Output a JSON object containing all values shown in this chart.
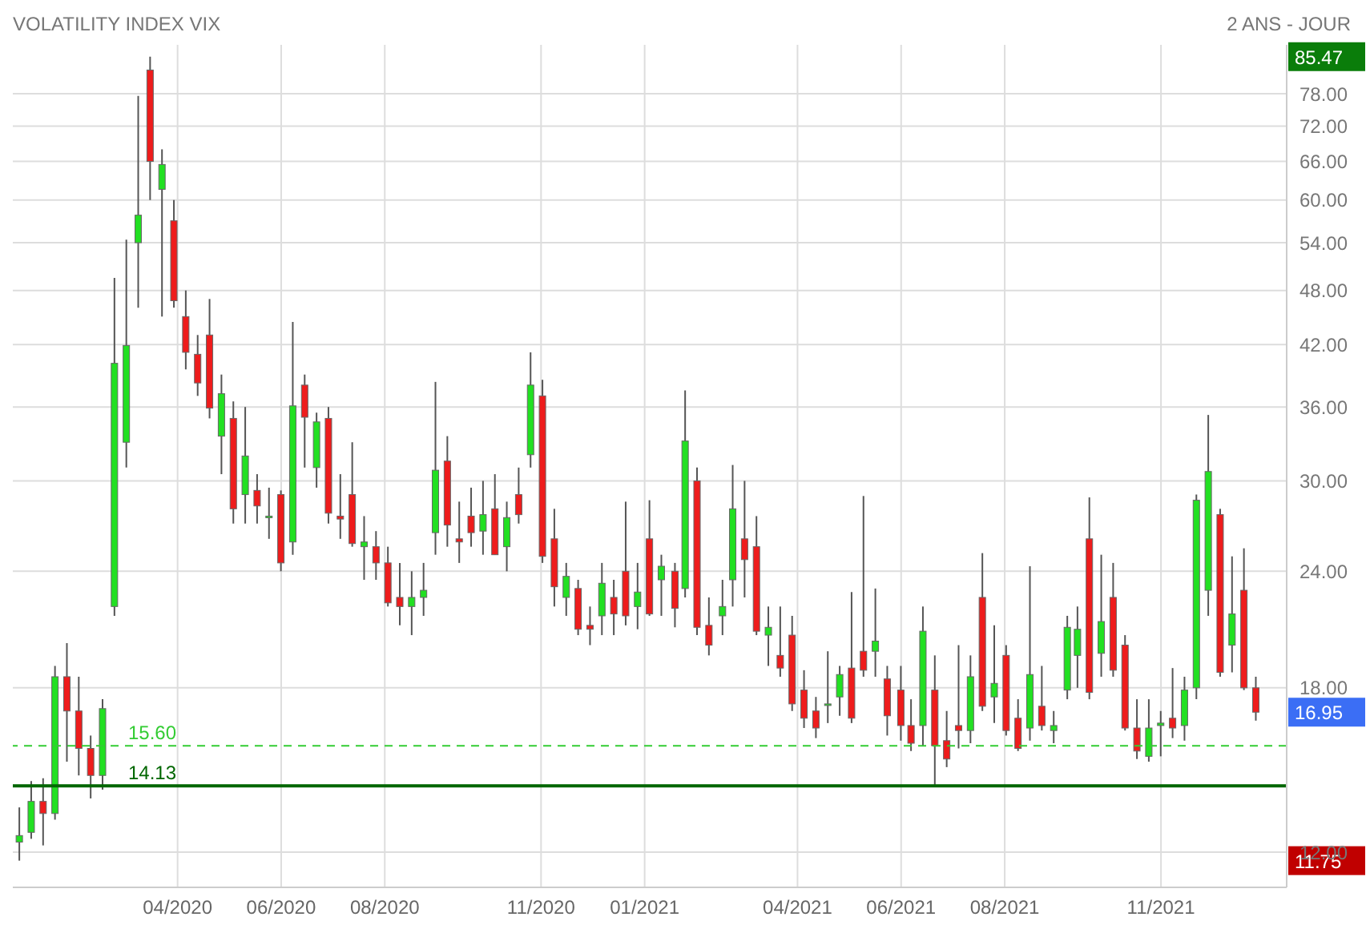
{
  "chart_data": {
    "type": "candlestick",
    "title": "VOLATILITY INDEX VIX",
    "subtitle": "2 ANS - JOUR",
    "x": [
      "2019-12-30",
      "2020-01-06",
      "2020-01-13",
      "2020-01-20",
      "2020-01-27",
      "2020-02-03",
      "2020-02-10",
      "2020-02-17",
      "2020-02-24",
      "2020-03-02",
      "2020-03-09",
      "2020-03-16",
      "2020-03-23",
      "2020-03-30",
      "2020-04-06",
      "2020-04-13",
      "2020-04-20",
      "2020-04-27",
      "2020-05-04",
      "2020-05-11",
      "2020-05-18",
      "2020-05-25",
      "2020-06-01",
      "2020-06-08",
      "2020-06-15",
      "2020-06-22",
      "2020-06-29",
      "2020-07-06",
      "2020-07-13",
      "2020-07-20",
      "2020-07-27",
      "2020-08-03",
      "2020-08-10",
      "2020-08-17",
      "2020-08-24",
      "2020-08-31",
      "2020-09-07",
      "2020-09-14",
      "2020-09-21",
      "2020-09-28",
      "2020-10-05",
      "2020-10-12",
      "2020-10-19",
      "2020-10-26",
      "2020-11-02",
      "2020-11-09",
      "2020-11-16",
      "2020-11-23",
      "2020-11-30",
      "2020-12-07",
      "2020-12-14",
      "2020-12-21",
      "2020-12-28",
      "2021-01-04",
      "2021-01-11",
      "2021-01-19",
      "2021-01-25",
      "2021-02-01",
      "2021-02-08",
      "2021-02-16",
      "2021-02-22",
      "2021-03-01",
      "2021-03-08",
      "2021-03-15",
      "2021-03-22",
      "2021-03-29",
      "2021-04-05",
      "2021-04-12",
      "2021-04-19",
      "2021-04-26",
      "2021-05-03",
      "2021-05-10",
      "2021-05-17",
      "2021-05-24",
      "2021-06-01",
      "2021-06-07",
      "2021-06-14",
      "2021-06-21",
      "2021-06-28",
      "2021-07-05",
      "2021-07-12",
      "2021-07-19",
      "2021-07-26",
      "2021-08-02",
      "2021-08-09",
      "2021-08-16",
      "2021-08-23",
      "2021-08-30",
      "2021-09-07",
      "2021-09-13",
      "2021-09-20",
      "2021-09-27",
      "2021-10-04",
      "2021-10-11",
      "2021-10-18",
      "2021-10-25",
      "2021-11-01",
      "2021-11-08",
      "2021-11-15",
      "2021-11-22",
      "2021-11-29",
      "2021-12-06",
      "2021-12-13",
      "2021-12-20",
      "2021-12-27"
    ],
    "ohlc": [
      [
        12.3,
        13.4,
        11.75,
        12.5
      ],
      [
        12.6,
        14.3,
        12.4,
        13.6
      ],
      [
        13.6,
        14.4,
        12.2,
        13.2
      ],
      [
        13.2,
        19.0,
        13.0,
        18.5
      ],
      [
        18.5,
        20.1,
        15.0,
        17.0
      ],
      [
        17.0,
        18.5,
        14.5,
        15.5
      ],
      [
        15.5,
        16.0,
        13.7,
        14.5
      ],
      [
        14.5,
        17.5,
        14.0,
        17.1
      ],
      [
        22.0,
        49.5,
        21.5,
        40.1
      ],
      [
        33.0,
        54.4,
        31.0,
        41.9
      ],
      [
        54.0,
        77.6,
        46.0,
        57.8
      ],
      [
        82.7,
        85.47,
        60.0,
        66.0
      ],
      [
        61.6,
        68.0,
        45.0,
        65.5
      ],
      [
        57.0,
        60.0,
        46.0,
        46.8
      ],
      [
        45.0,
        48.0,
        39.5,
        41.2
      ],
      [
        41.0,
        43.0,
        37.0,
        38.2
      ],
      [
        43.0,
        47.0,
        35.0,
        35.9
      ],
      [
        33.5,
        39.0,
        30.5,
        37.2
      ],
      [
        35.0,
        36.5,
        27.0,
        28.0
      ],
      [
        29.0,
        36.0,
        27.0,
        31.9
      ],
      [
        29.3,
        30.5,
        27.0,
        28.2
      ],
      [
        27.5,
        29.5,
        26.0,
        27.5
      ],
      [
        29.0,
        29.3,
        24.0,
        24.5
      ],
      [
        25.8,
        44.4,
        25.0,
        36.1
      ],
      [
        38.0,
        39.0,
        31.0,
        35.1
      ],
      [
        31.0,
        35.5,
        29.5,
        34.7
      ],
      [
        35.0,
        36.0,
        27.0,
        27.7
      ],
      [
        27.5,
        30.5,
        26.0,
        27.3
      ],
      [
        29.0,
        33.0,
        25.5,
        25.7
      ],
      [
        25.5,
        27.5,
        23.5,
        25.8
      ],
      [
        25.5,
        26.5,
        23.5,
        24.5
      ],
      [
        24.5,
        25.5,
        22.0,
        22.2
      ],
      [
        22.5,
        24.5,
        21.0,
        22.0
      ],
      [
        22.0,
        24.0,
        20.5,
        22.5
      ],
      [
        22.5,
        24.5,
        21.5,
        22.9
      ],
      [
        26.4,
        38.3,
        25.0,
        30.8
      ],
      [
        31.5,
        33.5,
        25.5,
        26.9
      ],
      [
        26.0,
        28.5,
        24.5,
        25.8
      ],
      [
        27.5,
        29.5,
        25.5,
        26.4
      ],
      [
        26.5,
        30.0,
        25.0,
        27.6
      ],
      [
        28.0,
        30.5,
        25.0,
        25.0
      ],
      [
        25.5,
        28.5,
        24.0,
        27.4
      ],
      [
        29.0,
        31.0,
        27.0,
        27.6
      ],
      [
        32.0,
        41.2,
        31.0,
        38.0
      ],
      [
        37.0,
        38.5,
        24.5,
        24.9
      ],
      [
        26.0,
        28.0,
        22.0,
        23.1
      ],
      [
        22.5,
        24.5,
        21.5,
        23.7
      ],
      [
        23.0,
        23.5,
        20.5,
        20.8
      ],
      [
        21.0,
        22.0,
        20.0,
        20.8
      ],
      [
        21.5,
        24.5,
        20.5,
        23.3
      ],
      [
        22.5,
        23.5,
        20.5,
        21.6
      ],
      [
        24.0,
        28.5,
        21.0,
        21.5
      ],
      [
        22.0,
        24.5,
        20.8,
        22.8
      ],
      [
        26.0,
        28.6,
        21.5,
        21.6
      ],
      [
        23.5,
        25.0,
        21.5,
        24.3
      ],
      [
        24.0,
        24.5,
        20.9,
        21.9
      ],
      [
        23.0,
        37.5,
        22.5,
        33.1
      ],
      [
        30.0,
        31.0,
        20.5,
        20.9
      ],
      [
        21.0,
        22.5,
        19.5,
        20.0
      ],
      [
        21.5,
        23.5,
        20.5,
        22.0
      ],
      [
        23.5,
        31.2,
        22.0,
        28.0
      ],
      [
        26.0,
        30.0,
        22.5,
        24.7
      ],
      [
        25.5,
        27.5,
        20.5,
        20.7
      ],
      [
        20.5,
        22.0,
        19.0,
        20.9
      ],
      [
        19.5,
        22.0,
        18.5,
        18.9
      ],
      [
        20.5,
        21.5,
        17.0,
        17.3
      ],
      [
        17.9,
        18.8,
        16.3,
        16.7
      ],
      [
        17.0,
        17.6,
        15.9,
        16.3
      ],
      [
        17.3,
        19.7,
        16.5,
        17.3
      ],
      [
        17.6,
        19.0,
        16.8,
        18.6
      ],
      [
        18.9,
        22.8,
        16.5,
        16.7
      ],
      [
        19.7,
        28.9,
        18.5,
        18.8
      ],
      [
        19.7,
        23.0,
        18.5,
        20.2
      ],
      [
        18.4,
        19.0,
        16.0,
        16.8
      ],
      [
        17.9,
        19.0,
        15.8,
        16.4
      ],
      [
        16.4,
        17.5,
        15.4,
        15.7
      ],
      [
        16.4,
        22.0,
        15.6,
        20.7
      ],
      [
        17.9,
        19.5,
        14.1,
        15.6
      ],
      [
        15.8,
        17.0,
        14.8,
        15.1
      ],
      [
        16.4,
        20.0,
        15.5,
        16.2
      ],
      [
        16.2,
        19.5,
        15.7,
        18.5
      ],
      [
        22.5,
        25.1,
        17.0,
        17.2
      ],
      [
        17.6,
        21.0,
        16.5,
        18.2
      ],
      [
        19.5,
        20.0,
        16.0,
        16.2
      ],
      [
        16.7,
        17.5,
        15.4,
        15.5
      ],
      [
        16.3,
        24.3,
        15.8,
        18.6
      ],
      [
        17.2,
        19.0,
        16.2,
        16.4
      ],
      [
        16.2,
        17.0,
        15.7,
        16.4
      ],
      [
        17.9,
        21.5,
        17.5,
        20.9
      ],
      [
        19.5,
        22.0,
        18.0,
        20.8
      ],
      [
        26.0,
        28.8,
        17.5,
        17.8
      ],
      [
        19.6,
        25.0,
        18.5,
        21.2
      ],
      [
        22.5,
        24.5,
        18.5,
        18.8
      ],
      [
        20.0,
        20.5,
        16.2,
        16.3
      ],
      [
        16.3,
        17.5,
        15.1,
        15.4
      ],
      [
        15.2,
        17.5,
        15.0,
        16.3
      ],
      [
        16.4,
        17.0,
        15.2,
        16.5
      ],
      [
        16.7,
        18.9,
        15.9,
        16.3
      ],
      [
        16.4,
        18.5,
        15.8,
        17.9
      ],
      [
        18.0,
        29.0,
        17.5,
        28.6
      ],
      [
        22.9,
        35.3,
        21.5,
        30.7
      ],
      [
        27.6,
        28.0,
        18.5,
        18.7
      ],
      [
        20.0,
        24.9,
        18.7,
        21.6
      ],
      [
        22.9,
        25.4,
        17.9,
        18.0
      ],
      [
        18.0,
        18.5,
        16.6,
        16.95
      ]
    ],
    "xlim": [
      "2019-12-26",
      "2022-01-14"
    ],
    "xticks": [
      {
        "value": "2020-04-01",
        "label": "04/2020"
      },
      {
        "value": "2020-06-01",
        "label": "06/2020"
      },
      {
        "value": "2020-08-01",
        "label": "08/2020"
      },
      {
        "value": "2020-11-01",
        "label": "11/2020"
      },
      {
        "value": "2021-01-01",
        "label": "01/2021"
      },
      {
        "value": "2021-04-01",
        "label": "04/2021"
      },
      {
        "value": "2021-06-01",
        "label": "06/2021"
      },
      {
        "value": "2021-08-01",
        "label": "08/2021"
      },
      {
        "value": "2021-11-01",
        "label": "11/2021"
      }
    ],
    "ylim": [
      11,
      88
    ],
    "log": true,
    "yticks": [
      {
        "value": 12,
        "label": "12.00"
      },
      {
        "value": 18,
        "label": "18.00"
      },
      {
        "value": 24,
        "label": "24.00"
      },
      {
        "value": 30,
        "label": "30.00"
      },
      {
        "value": 36,
        "label": "36.00"
      },
      {
        "value": 42,
        "label": "42.00"
      },
      {
        "value": 48,
        "label": "48.00"
      },
      {
        "value": 54,
        "label": "54.00"
      },
      {
        "value": 60,
        "label": "60.00"
      },
      {
        "value": 66,
        "label": "66.00"
      },
      {
        "value": 72,
        "label": "72.00"
      },
      {
        "value": 78,
        "label": "78.00"
      }
    ],
    "ref_lines": [
      {
        "axis": "y",
        "value": 15.6,
        "label": "15.60",
        "color": "#33cc33",
        "line_style": "dashed"
      },
      {
        "axis": "y",
        "value": 14.13,
        "label": "14.13",
        "color": "#006600",
        "line_style": "solid"
      }
    ],
    "annotations": [
      "85.47",
      "16.95",
      "11.75"
    ],
    "grid": true
  }
}
